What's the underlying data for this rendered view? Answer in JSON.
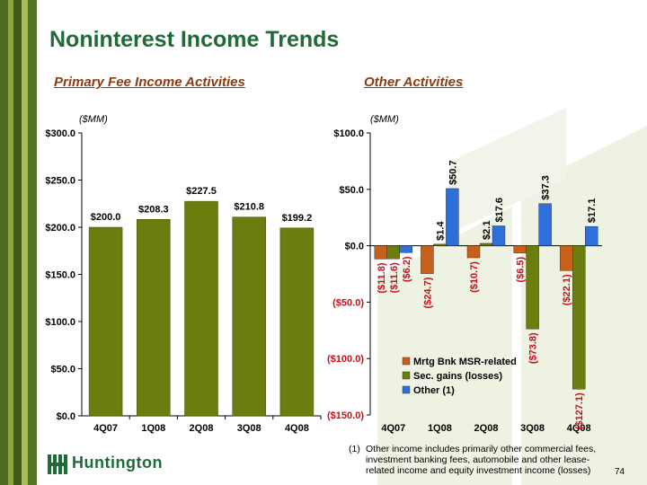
{
  "title": "Noninterest Income Trends",
  "left_subtitle": "Primary Fee Income Activities",
  "right_subtitle": "Other Activities",
  "unit_left": "($MM)",
  "unit_right": "($MM)",
  "logo_text": "Huntington",
  "footnote_marker": "(1)",
  "footnote_text": "Other income includes primarily other commercial fees, investment banking fees, automobile and other lease-related income and equity investment income (losses)",
  "page_number": "74",
  "colors": {
    "title_green": "#1e6b35",
    "subtitle_brown": "#8a3b0f",
    "bar_green": "#6b7d0e",
    "bar_orange": "#c5611b",
    "bar_blue": "#2f6fd9",
    "neg_label": "#c8101a"
  },
  "chart_data": [
    {
      "type": "bar",
      "categories": [
        "4Q07",
        "1Q08",
        "2Q08",
        "3Q08",
        "4Q08"
      ],
      "values": [
        200.0,
        208.3,
        227.5,
        210.8,
        199.2
      ],
      "value_labels": [
        "$200.0",
        "$208.3",
        "$227.5",
        "$210.8",
        "$199.2"
      ],
      "ylim": [
        0,
        300
      ],
      "yticks": [
        0,
        50,
        100,
        150,
        200,
        250,
        300
      ],
      "ytick_labels": [
        "$0.0",
        "$50.0",
        "$100.0",
        "$150.0",
        "$200.0",
        "$250.0",
        "$300.0"
      ],
      "grid": false
    },
    {
      "type": "bar",
      "categories": [
        "4Q07",
        "1Q08",
        "2Q08",
        "3Q08",
        "4Q08"
      ],
      "series": [
        {
          "name": "Mrtg Bnk MSR-related",
          "values": [
            -11.8,
            -24.7,
            -10.7,
            -6.5,
            -22.1
          ],
          "labels": [
            "($11.8)",
            "($24.7)",
            "($10.7)",
            "($6.5)",
            "($22.1)"
          ]
        },
        {
          "name": "Sec. gains (losses)",
          "values": [
            -11.6,
            1.4,
            2.1,
            -73.8,
            -127.1
          ],
          "labels": [
            "($11.6)",
            "$1.4",
            "$2.1",
            "($73.8)",
            "($127.1)"
          ]
        },
        {
          "name": "Other (1)",
          "values": [
            -6.2,
            50.7,
            17.6,
            37.3,
            17.1
          ],
          "labels": [
            "($6.2)",
            "$50.7",
            "$17.6",
            "$37.3",
            "$17.1"
          ]
        }
      ],
      "ylim": [
        -150,
        100
      ],
      "yticks": [
        -150,
        -100,
        -50,
        0,
        50,
        100
      ],
      "ytick_labels": [
        "($150.0)",
        "($100.0)",
        "($50.0)",
        "$0.0",
        "$50.0",
        "$100.0"
      ],
      "legend": "bottom-left inside plot",
      "grid": false
    }
  ]
}
